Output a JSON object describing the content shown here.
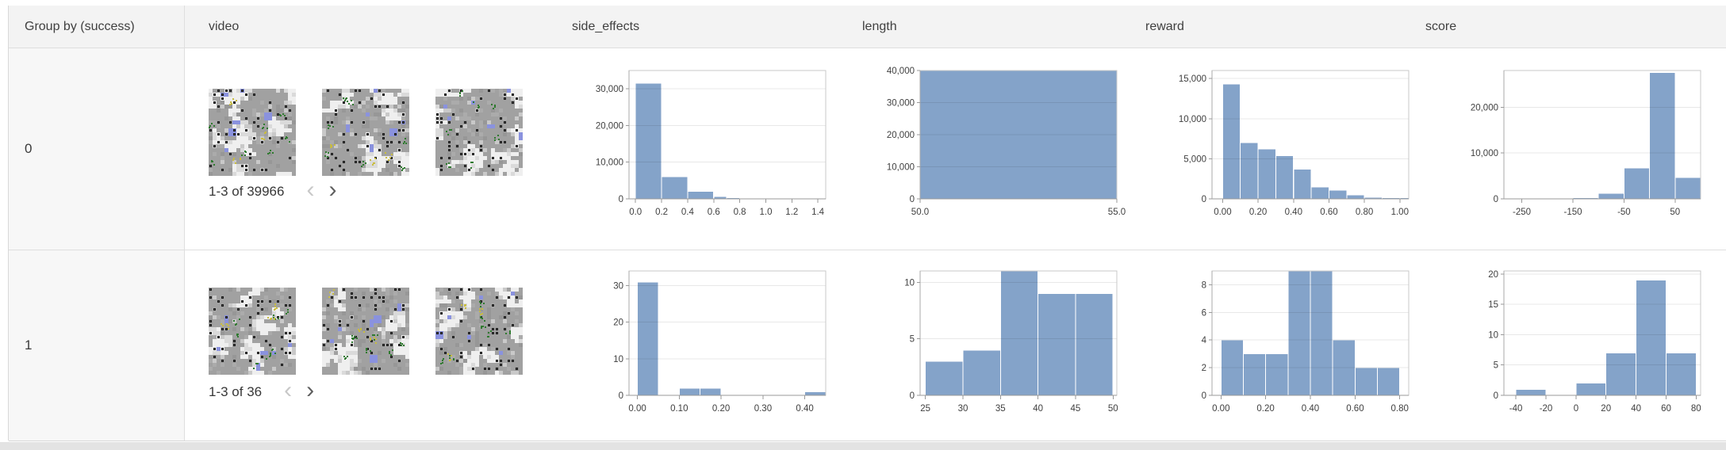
{
  "header": {
    "columns": [
      "Group by (success)",
      "video",
      "side_effects",
      "length",
      "reward",
      "score"
    ]
  },
  "pagination_icons": {
    "prev": "‹",
    "next": "›"
  },
  "rows": [
    {
      "group": "0",
      "video": {
        "pagination": "1-3 of 39966",
        "prev_enabled": false,
        "next_enabled": true,
        "thumbnail_count": 3
      }
    },
    {
      "group": "1",
      "video": {
        "pagination": "1-3 of 36",
        "prev_enabled": false,
        "next_enabled": true,
        "thumbnail_count": 3
      }
    }
  ],
  "colors": {
    "histogram_bar": "#84a3c9",
    "thumbnail_blue": "#8a92de",
    "thumbnail_green": "#2f7a2f",
    "thumbnail_yellow": "#c9bd3e",
    "header_bg": "#f3f3f3",
    "group_cell_bg": "#f7f7f7"
  },
  "chart_data": [
    {
      "slot": "r0-side_effects",
      "row_group": "0",
      "metric": "side_effects",
      "type": "bar",
      "xmin": -0.05,
      "xmax": 1.46,
      "ymax": 35000,
      "xticks": [
        0.0,
        0.2,
        0.4,
        0.6,
        0.8,
        1.0,
        1.2,
        1.4
      ],
      "xtick_labels": [
        "0.0",
        "0.2",
        "0.4",
        "0.6",
        "0.8",
        "1.0",
        "1.2",
        "1.4"
      ],
      "yticks": [
        0,
        10000,
        20000,
        30000
      ],
      "ytick_labels": [
        "0",
        "10,000",
        "20,000",
        "30,000"
      ],
      "bins": [
        [
          0.0,
          0.2,
          31500
        ],
        [
          0.2,
          0.4,
          6000
        ],
        [
          0.4,
          0.6,
          2000
        ],
        [
          0.6,
          0.7,
          600
        ],
        [
          0.7,
          0.8,
          350
        ],
        [
          0.8,
          0.9,
          100
        ],
        [
          0.9,
          1.0,
          50
        ],
        [
          1.0,
          1.1,
          30
        ],
        [
          1.1,
          1.2,
          20
        ],
        [
          1.2,
          1.3,
          15
        ],
        [
          1.3,
          1.45,
          10
        ]
      ]
    },
    {
      "slot": "r0-length",
      "row_group": "0",
      "metric": "length",
      "type": "bar",
      "xmin": 50,
      "xmax": 55,
      "ymax": 40000,
      "xticks": [
        50,
        55
      ],
      "xtick_labels": [
        "50.0",
        "55.0"
      ],
      "yticks": [
        0,
        10000,
        20000,
        30000,
        40000
      ],
      "ytick_labels": [
        "0",
        "10,000",
        "20,000",
        "30,000",
        "40,000"
      ],
      "bins": [
        [
          50,
          55,
          40000
        ]
      ]
    },
    {
      "slot": "r0-reward",
      "row_group": "0",
      "metric": "reward",
      "type": "bar",
      "xmin": -0.06,
      "xmax": 1.05,
      "ymax": 16000,
      "xticks": [
        0.0,
        0.2,
        0.4,
        0.6,
        0.8,
        1.0
      ],
      "xtick_labels": [
        "0.00",
        "0.20",
        "0.40",
        "0.60",
        "0.80",
        "1.00"
      ],
      "yticks": [
        0,
        5000,
        10000,
        15000
      ],
      "ytick_labels": [
        "0",
        "5,000",
        "10,000",
        "15,000"
      ],
      "bins": [
        [
          0.0,
          0.1,
          14300
        ],
        [
          0.1,
          0.2,
          7000
        ],
        [
          0.2,
          0.3,
          6200
        ],
        [
          0.3,
          0.4,
          5400
        ],
        [
          0.4,
          0.5,
          3700
        ],
        [
          0.5,
          0.6,
          1500
        ],
        [
          0.6,
          0.7,
          1100
        ],
        [
          0.7,
          0.8,
          500
        ],
        [
          0.8,
          0.9,
          200
        ],
        [
          0.9,
          1.0,
          150
        ],
        [
          1.0,
          1.05,
          130
        ]
      ]
    },
    {
      "slot": "r0-score",
      "row_group": "0",
      "metric": "score",
      "type": "bar",
      "xmin": -285,
      "xmax": 100,
      "ymax": 28000,
      "xticks": [
        -250,
        -150,
        -50,
        50
      ],
      "xtick_labels": [
        "-250",
        "-150",
        "-50",
        "50"
      ],
      "yticks": [
        0,
        10000,
        20000
      ],
      "ytick_labels": [
        "0",
        "10,000",
        "20,000"
      ],
      "bins": [
        [
          -250,
          -200,
          50
        ],
        [
          -200,
          -150,
          80
        ],
        [
          -150,
          -100,
          250
        ],
        [
          -100,
          -50,
          1200
        ],
        [
          -50,
          0,
          6700
        ],
        [
          0,
          50,
          27600
        ],
        [
          50,
          100,
          4700
        ]
      ]
    },
    {
      "slot": "r1-side_effects",
      "row_group": "1",
      "metric": "side_effects",
      "type": "bar",
      "xmin": -0.02,
      "xmax": 0.45,
      "ymax": 34,
      "xticks": [
        0.0,
        0.1,
        0.2,
        0.3,
        0.4
      ],
      "xtick_labels": [
        "0.00",
        "0.10",
        "0.20",
        "0.30",
        "0.40"
      ],
      "yticks": [
        0,
        10,
        20,
        30
      ],
      "ytick_labels": [
        "0",
        "10",
        "20",
        "30"
      ],
      "bins": [
        [
          0.0,
          0.05,
          31
        ],
        [
          0.1,
          0.15,
          2
        ],
        [
          0.15,
          0.2,
          2
        ],
        [
          0.4,
          0.45,
          1
        ]
      ]
    },
    {
      "slot": "r1-length",
      "row_group": "1",
      "metric": "length",
      "type": "bar",
      "xmin": 24.3,
      "xmax": 50.5,
      "ymax": 11,
      "xticks": [
        25,
        30,
        35,
        40,
        45,
        50
      ],
      "xtick_labels": [
        "25",
        "30",
        "35",
        "40",
        "45",
        "50"
      ],
      "yticks": [
        0,
        5,
        10
      ],
      "ytick_labels": [
        "0",
        "5",
        "10"
      ],
      "bins": [
        [
          25,
          30,
          3
        ],
        [
          30,
          35,
          4
        ],
        [
          35,
          40,
          11
        ],
        [
          40,
          45,
          9
        ],
        [
          45,
          50,
          9
        ]
      ]
    },
    {
      "slot": "r1-reward",
      "row_group": "1",
      "metric": "reward",
      "type": "bar",
      "xmin": -0.04,
      "xmax": 0.84,
      "ymax": 9,
      "xticks": [
        0.0,
        0.2,
        0.4,
        0.6,
        0.8
      ],
      "xtick_labels": [
        "0.00",
        "0.20",
        "0.40",
        "0.60",
        "0.80"
      ],
      "yticks": [
        0,
        2,
        4,
        6,
        8
      ],
      "ytick_labels": [
        "0",
        "2",
        "4",
        "6",
        "8"
      ],
      "bins": [
        [
          0.0,
          0.1,
          4
        ],
        [
          0.1,
          0.2,
          3
        ],
        [
          0.2,
          0.3,
          3
        ],
        [
          0.3,
          0.4,
          9
        ],
        [
          0.4,
          0.5,
          9
        ],
        [
          0.5,
          0.6,
          4
        ],
        [
          0.6,
          0.7,
          2
        ],
        [
          0.7,
          0.8,
          2
        ]
      ]
    },
    {
      "slot": "r1-score",
      "row_group": "1",
      "metric": "score",
      "type": "bar",
      "xmin": -48,
      "xmax": 83,
      "ymax": 20.5,
      "xticks": [
        -40,
        -20,
        0,
        20,
        40,
        60,
        80
      ],
      "xtick_labels": [
        "-40",
        "-20",
        "0",
        "20",
        "40",
        "60",
        "80"
      ],
      "yticks": [
        0,
        5,
        10,
        15,
        20
      ],
      "ytick_labels": [
        "0",
        "5",
        "10",
        "15",
        "20"
      ],
      "bins": [
        [
          -40,
          -20,
          1
        ],
        [
          0,
          20,
          2
        ],
        [
          20,
          40,
          7
        ],
        [
          40,
          60,
          19
        ],
        [
          60,
          80,
          7
        ]
      ]
    }
  ]
}
